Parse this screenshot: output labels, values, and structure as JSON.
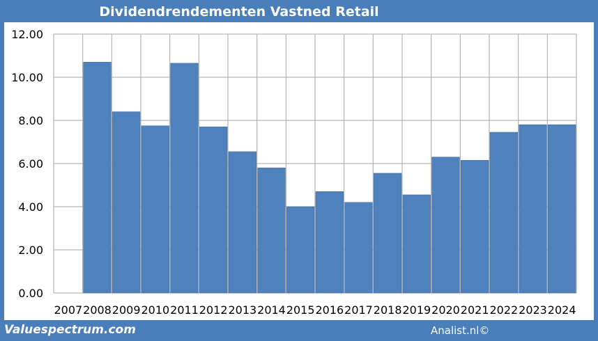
{
  "header": {
    "title": "Dividendrendementen Vastned Retail"
  },
  "footer": {
    "left_text": "Valuespectrum.com",
    "right_text": "Analist.nl©"
  },
  "colors": {
    "frame": "#4a7ebb",
    "bar": "#4f81bd",
    "bar_edge": "#3e6ea6",
    "grid": "#a6a6a6",
    "plot_bg": "#ffffff"
  },
  "chart_data": {
    "type": "bar",
    "title": "Dividendrendementen Vastned Retail",
    "xlabel": "",
    "ylabel": "",
    "ylim": [
      0,
      12
    ],
    "yticks": [
      "0.00",
      "2.00",
      "4.00",
      "6.00",
      "8.00",
      "10.00",
      "12.00"
    ],
    "grid": true,
    "legend": "none",
    "categories": [
      "2007",
      "2008",
      "2009",
      "2010",
      "2011",
      "2012",
      "2013",
      "2014",
      "2015",
      "2016",
      "2017",
      "2018",
      "2019",
      "2020",
      "2021",
      "2022",
      "2023",
      "2024"
    ],
    "values": [
      0,
      10.7,
      8.4,
      7.75,
      10.65,
      7.7,
      6.55,
      5.8,
      4.0,
      4.7,
      4.2,
      5.55,
      4.55,
      6.3,
      6.15,
      7.45,
      7.8,
      7.8
    ]
  }
}
